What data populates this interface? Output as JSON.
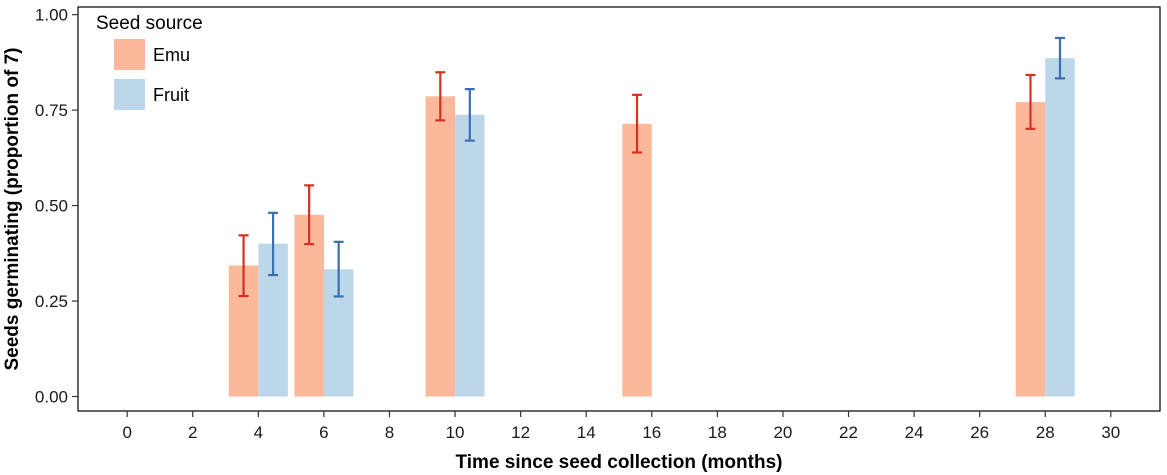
{
  "chart_data": {
    "type": "bar",
    "xlabel": "Time since seed collection (months)",
    "ylabel": "Seeds germinating (proportion of 7)",
    "xlim": [
      -1.5,
      31.5
    ],
    "ylim": [
      -0.038,
      1.02
    ],
    "xticks": [
      "0",
      "2",
      "4",
      "6",
      "8",
      "10",
      "12",
      "14",
      "16",
      "18",
      "20",
      "22",
      "24",
      "26",
      "28",
      "30"
    ],
    "yticks": [
      "0.00",
      "0.25",
      "0.50",
      "0.75",
      "1.00"
    ],
    "bar_width_months": 0.9,
    "grid": false,
    "legend": {
      "title": "Seed source",
      "position": "top-left",
      "entries": [
        "Emu",
        "Fruit"
      ]
    },
    "series": [
      {
        "name": "Emu",
        "color": "#fbb89a",
        "error_color": "#d7301f",
        "points": [
          {
            "x": 4,
            "y": 0.343,
            "lo": 0.263,
            "hi": 0.422
          },
          {
            "x": 6,
            "y": 0.476,
            "lo": 0.399,
            "hi": 0.553
          },
          {
            "x": 10,
            "y": 0.786,
            "lo": 0.723,
            "hi": 0.849
          },
          {
            "x": 16,
            "y": 0.714,
            "lo": 0.639,
            "hi": 0.79
          },
          {
            "x": 28,
            "y": 0.771,
            "lo": 0.701,
            "hi": 0.842
          }
        ]
      },
      {
        "name": "Fruit",
        "color": "#bcd7ea",
        "error_color": "#3a6fb0",
        "points": [
          {
            "x": 4,
            "y": 0.4,
            "lo": 0.318,
            "hi": 0.481
          },
          {
            "x": 6,
            "y": 0.333,
            "lo": 0.262,
            "hi": 0.405
          },
          {
            "x": 10,
            "y": 0.738,
            "lo": 0.67,
            "hi": 0.805
          },
          {
            "x": 28,
            "y": 0.886,
            "lo": 0.833,
            "hi": 0.939
          }
        ]
      }
    ]
  }
}
